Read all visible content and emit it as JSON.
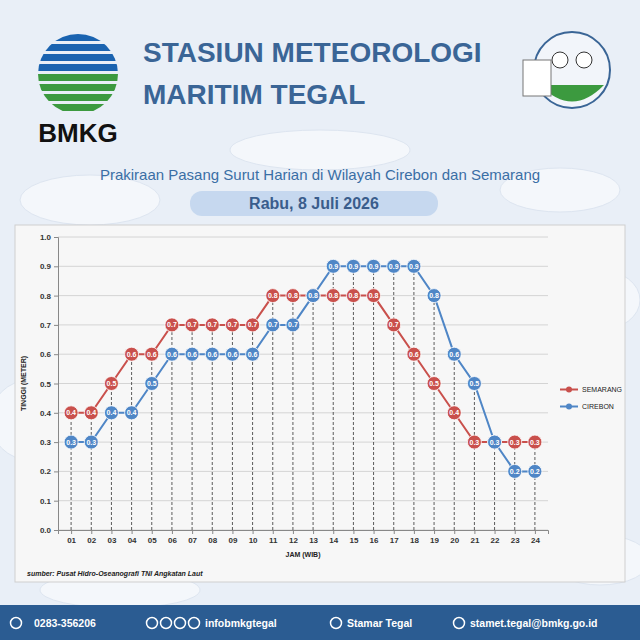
{
  "header": {
    "title_lines": [
      "STASIUN METEOROLOGI",
      "MARITIM TEGAL"
    ],
    "logo_text": "BMKG"
  },
  "chart_data": {
    "type": "line",
    "title": "Prakiraan Pasang Surut Harian di Wilayah Cirebon dan Semarang",
    "subtitle": "Rabu, 8 Juli 2026",
    "x_label": "JAM (WIB)",
    "y_label": "TINGGI (METER)",
    "categories": [
      "01",
      "02",
      "03",
      "04",
      "05",
      "06",
      "07",
      "08",
      "09",
      "10",
      "11",
      "12",
      "13",
      "14",
      "15",
      "16",
      "17",
      "18",
      "19",
      "20",
      "21",
      "22",
      "23",
      "24"
    ],
    "series": [
      {
        "name": "SEMARANG",
        "color": "#c9504c",
        "marker": "circle",
        "line_style": "solid",
        "values": [
          0.4,
          0.4,
          0.5,
          0.6,
          0.6,
          0.7,
          0.7,
          0.7,
          0.7,
          0.7,
          0.8,
          0.8,
          0.8,
          0.8,
          0.8,
          0.8,
          0.7,
          0.6,
          0.5,
          0.4,
          0.3,
          0.3,
          0.3,
          0.3
        ]
      },
      {
        "name": "CIREBON",
        "color": "#4f86c6",
        "marker": "circle",
        "line_style": "solid",
        "values": [
          0.3,
          0.3,
          0.4,
          0.4,
          0.5,
          0.6,
          0.6,
          0.6,
          0.6,
          0.6,
          0.7,
          0.7,
          0.8,
          0.9,
          0.9,
          0.9,
          0.9,
          0.9,
          0.8,
          0.6,
          0.5,
          0.3,
          0.2,
          0.2
        ]
      }
    ],
    "ylim": [
      0,
      1
    ],
    "yticks": [
      {
        "value": 0,
        "label": "0.0"
      },
      0.1,
      0.2,
      0.3,
      0.4,
      0.5,
      0.6,
      0.7,
      0.8,
      0.9,
      {
        "value": 1,
        "label": "1.0"
      }
    ],
    "grid": true,
    "legend": "right",
    "data_labels": true
  },
  "source": "sumber: Pusat Hidro-Oseanografi TNI Angkatan Laut",
  "footer": {
    "contacts": [
      "0283-356206",
      "infobmkgtegal",
      "Stamar Tegal",
      "stamet.tegal@bmkg.go.id"
    ]
  }
}
